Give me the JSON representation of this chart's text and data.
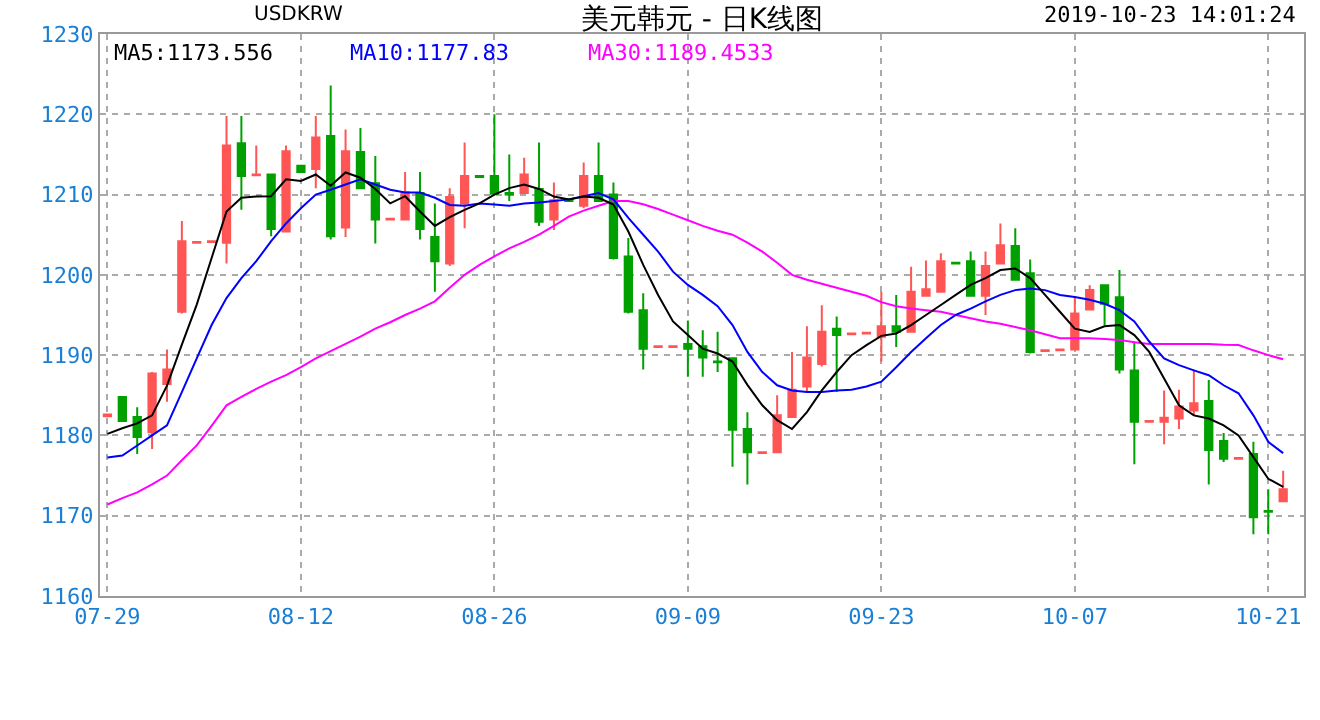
{
  "chart_data": {
    "type": "candlestick",
    "title": "美元韩元 - 日K线图",
    "annotations": [
      "USDKRW",
      "2019-10-23 14:01:24"
    ],
    "categories": [
      "07-29",
      null,
      null,
      null,
      null,
      null,
      null,
      null,
      null,
      null,
      null,
      null,
      null,
      "08-12",
      null,
      null,
      null,
      null,
      null,
      null,
      null,
      null,
      null,
      null,
      null,
      null,
      "08-26",
      null,
      null,
      null,
      null,
      null,
      null,
      null,
      null,
      null,
      null,
      null,
      null,
      "09-09",
      null,
      null,
      null,
      null,
      null,
      null,
      null,
      null,
      null,
      null,
      null,
      null,
      "09-23",
      null,
      null,
      null,
      null,
      null,
      null,
      null,
      null,
      null,
      null,
      null,
      null,
      "10-07",
      null,
      null,
      null,
      null,
      null,
      null,
      null,
      null,
      null,
      null,
      null,
      null,
      "10-21",
      null
    ],
    "ohlc": [
      [
        1182.4,
        1182.6,
        1182.4,
        1182.6
      ],
      [
        1184.8,
        1184.8,
        1181.8,
        1181.8
      ],
      [
        1182.3,
        1183.5,
        1177.7,
        1179.8
      ],
      [
        1180.4,
        1187.9,
        1178.3,
        1187.7
      ],
      [
        1186.4,
        1190.7,
        1184.2,
        1188.2
      ],
      [
        1195.4,
        1206.7,
        1195.2,
        1204.2
      ],
      [
        1204.0,
        1204.1,
        1204.0,
        1204.1
      ],
      [
        1204.1,
        1204.2,
        1204.1,
        1204.2
      ],
      [
        1204.0,
        1219.8,
        1201.4,
        1216.1
      ],
      [
        1216.4,
        1219.8,
        1208.1,
        1212.3
      ],
      [
        1212.4,
        1216.1,
        1212.4,
        1212.5
      ],
      [
        1212.5,
        1212.5,
        1204.8,
        1205.7
      ],
      [
        1205.4,
        1216.1,
        1205.3,
        1215.4
      ],
      [
        1213.6,
        1213.6,
        1212.8,
        1212.8
      ],
      [
        1213.2,
        1219.8,
        1210.8,
        1217.1
      ],
      [
        1217.3,
        1223.6,
        1204.4,
        1204.8
      ],
      [
        1205.9,
        1218.1,
        1204.7,
        1215.4
      ],
      [
        1215.3,
        1218.3,
        1210.8,
        1210.8
      ],
      [
        1211.4,
        1214.8,
        1203.9,
        1206.9
      ],
      [
        1206.9,
        1207.0,
        1206.9,
        1207.0
      ],
      [
        1206.9,
        1212.8,
        1206.9,
        1210.3
      ],
      [
        1210.2,
        1212.8,
        1204.4,
        1205.7
      ],
      [
        1204.7,
        1208.9,
        1197.9,
        1201.7
      ],
      [
        1201.4,
        1210.8,
        1201.1,
        1209.7
      ],
      [
        1208.9,
        1216.5,
        1205.8,
        1212.3
      ],
      [
        1212.3,
        1212.3,
        1212.2,
        1212.2
      ],
      [
        1212.3,
        1220.0,
        1210.1,
        1210.1
      ],
      [
        1210.2,
        1215.0,
        1209.2,
        1210.0
      ],
      [
        1210.2,
        1214.6,
        1210.2,
        1212.5
      ],
      [
        1210.7,
        1216.5,
        1206.1,
        1206.6
      ],
      [
        1206.9,
        1211.5,
        1205.6,
        1209.3
      ],
      [
        1209.4,
        1209.4,
        1209.2,
        1209.2
      ],
      [
        1208.6,
        1214.0,
        1208.3,
        1212.3
      ],
      [
        1212.3,
        1216.5,
        1209.2,
        1209.2
      ],
      [
        1210.0,
        1211.5,
        1201.9,
        1202.1
      ],
      [
        1202.3,
        1204.6,
        1195.2,
        1195.4
      ],
      [
        1195.6,
        1197.7,
        1188.2,
        1190.8
      ],
      [
        1191.0,
        1191.1,
        1191.0,
        1191.1
      ],
      [
        1191.0,
        1191.1,
        1191.0,
        1191.1
      ],
      [
        1191.4,
        1194.3,
        1187.3,
        1190.8
      ],
      [
        1191.1,
        1193.1,
        1187.3,
        1189.7
      ],
      [
        1189.2,
        1192.9,
        1187.9,
        1189.1
      ],
      [
        1189.6,
        1189.6,
        1176.1,
        1180.7
      ],
      [
        1180.8,
        1182.9,
        1173.9,
        1177.9
      ],
      [
        1177.8,
        1177.9,
        1177.8,
        1177.9
      ],
      [
        1177.9,
        1185.0,
        1177.9,
        1182.5
      ],
      [
        1182.3,
        1190.4,
        1182.3,
        1185.7
      ],
      [
        1186.1,
        1193.6,
        1185.4,
        1189.7
      ],
      [
        1188.9,
        1196.2,
        1188.6,
        1192.9
      ],
      [
        1193.3,
        1194.8,
        1185.4,
        1192.5
      ],
      [
        1192.6,
        1192.7,
        1192.6,
        1192.7
      ],
      [
        1192.7,
        1192.8,
        1192.7,
        1192.8
      ],
      [
        1192.3,
        1197.9,
        1189.2,
        1193.6
      ],
      [
        1193.6,
        1197.5,
        1191.0,
        1192.9
      ],
      [
        1192.9,
        1201.0,
        1192.9,
        1197.9
      ],
      [
        1197.4,
        1201.8,
        1197.4,
        1198.2
      ],
      [
        1197.9,
        1202.7,
        1197.9,
        1201.7
      ],
      [
        1201.5,
        1201.5,
        1201.4,
        1201.4
      ],
      [
        1201.7,
        1202.9,
        1197.4,
        1197.4
      ],
      [
        1197.4,
        1202.9,
        1195.0,
        1201.1
      ],
      [
        1201.4,
        1206.4,
        1201.4,
        1203.7
      ],
      [
        1203.6,
        1205.8,
        1199.4,
        1199.4
      ],
      [
        1200.2,
        1201.9,
        1190.2,
        1190.4
      ],
      [
        1190.5,
        1190.6,
        1190.5,
        1190.6
      ],
      [
        1190.6,
        1190.7,
        1190.6,
        1190.7
      ],
      [
        1190.7,
        1197.3,
        1190.7,
        1195.2
      ],
      [
        1195.7,
        1198.7,
        1195.7,
        1198.1
      ],
      [
        1198.7,
        1198.7,
        1193.7,
        1196.4
      ],
      [
        1197.2,
        1200.6,
        1187.7,
        1188.2
      ],
      [
        1188.1,
        1191.7,
        1176.4,
        1181.7
      ],
      [
        1181.7,
        1181.8,
        1181.7,
        1181.8
      ],
      [
        1181.7,
        1185.6,
        1178.9,
        1182.2
      ],
      [
        1182.1,
        1185.7,
        1180.8,
        1183.6
      ],
      [
        1183.1,
        1188.2,
        1182.5,
        1184.0
      ],
      [
        1184.3,
        1186.9,
        1173.9,
        1178.2
      ],
      [
        1179.3,
        1180.3,
        1176.7,
        1177.1
      ],
      [
        1177.1,
        1177.2,
        1177.1,
        1177.2
      ],
      [
        1177.7,
        1179.2,
        1167.7,
        1169.8
      ],
      [
        1170.6,
        1173.3,
        1167.7,
        1170.5
      ],
      [
        1171.8,
        1175.6,
        1171.8,
        1173.3
      ]
    ],
    "colors": [
      "#ff5555",
      "#00a000",
      "#00a000",
      "#ff5555",
      "#ff5555",
      "#ff5555",
      "#ff5555",
      "#ff5555",
      "#ff5555",
      "#00a000",
      "#ff5555",
      "#00a000",
      "#ff5555",
      "#00a000",
      "#ff5555",
      "#00a000",
      "#ff5555",
      "#00a000",
      "#00a000",
      "#ff5555",
      "#ff5555",
      "#00a000",
      "#00a000",
      "#ff5555",
      "#ff5555",
      "#00a000",
      "#00a000",
      "#00a000",
      "#ff5555",
      "#00a000",
      "#ff5555",
      "#00a000",
      "#ff5555",
      "#00a000",
      "#00a000",
      "#00a000",
      "#00a000",
      "#ff5555",
      "#ff5555",
      "#00a000",
      "#00a000",
      "#00a000",
      "#00a000",
      "#00a000",
      "#ff5555",
      "#ff5555",
      "#ff5555",
      "#ff5555",
      "#ff5555",
      "#00a000",
      "#ff5555",
      "#ff5555",
      "#ff5555",
      "#00a000",
      "#ff5555",
      "#ff5555",
      "#ff5555",
      "#00a000",
      "#00a000",
      "#ff5555",
      "#ff5555",
      "#00a000",
      "#00a000",
      "#ff5555",
      "#ff5555",
      "#ff5555",
      "#ff5555",
      "#00a000",
      "#00a000",
      "#00a000",
      "#ff5555",
      "#ff5555",
      "#ff5555",
      "#ff5555",
      "#00a000",
      "#00a000",
      "#ff5555",
      "#00a000",
      "#00a000",
      "#ff5555"
    ],
    "series": [
      {
        "type": "line",
        "name": "MA5:1173.556",
        "color": "#000000",
        "values": [
          1180.2,
          1180.9,
          1181.5,
          1182.5,
          1186.2,
          1191.3,
          1196.3,
          1202.1,
          1207.9,
          1209.6,
          1209.75,
          1209.8,
          1211.9,
          1211.7,
          1212.5,
          1211.1,
          1212.75,
          1212.1,
          1210.7,
          1208.9,
          1209.8,
          1207.9,
          1206.1,
          1207.2,
          1208.1,
          1208.9,
          1210.0,
          1210.8,
          1211.25,
          1210.7,
          1209.75,
          1209.4,
          1209.75,
          1209.6,
          1208.75,
          1205.4,
          1201.25,
          1197.5,
          1194.2,
          1192.5,
          1190.8,
          1190.2,
          1189.2,
          1186.3,
          1183.75,
          1181.9,
          1180.8,
          1182.9,
          1185.6,
          1187.9,
          1190.0,
          1191.25,
          1192.4,
          1192.7,
          1193.75,
          1195.0,
          1196.25,
          1197.5,
          1198.75,
          1199.6,
          1200.6,
          1200.8,
          1199.6,
          1197.5,
          1195.4,
          1193.3,
          1192.9,
          1193.6,
          1193.75,
          1192.5,
          1190.4,
          1187.1,
          1183.75,
          1182.5,
          1182.1,
          1181.25,
          1180.0,
          1177.3,
          1174.6,
          1173.6
        ]
      },
      {
        "type": "line",
        "name": "MA10:1177.83",
        "color": "#0000ff",
        "values": [
          1177.25,
          1177.5,
          1178.75,
          1180.0,
          1181.25,
          1185.4,
          1189.6,
          1193.75,
          1197.1,
          1199.6,
          1201.7,
          1204.2,
          1206.4,
          1208.3,
          1210.0,
          1210.6,
          1211.25,
          1211.9,
          1211.25,
          1210.6,
          1210.25,
          1210.25,
          1209.6,
          1208.7,
          1208.6,
          1208.9,
          1208.75,
          1208.6,
          1208.9,
          1209.0,
          1209.2,
          1209.4,
          1209.8,
          1210.2,
          1209.4,
          1207.1,
          1205.0,
          1202.9,
          1200.4,
          1198.75,
          1197.5,
          1196.1,
          1193.75,
          1190.4,
          1187.9,
          1186.25,
          1185.6,
          1185.4,
          1185.4,
          1185.6,
          1185.7,
          1186.1,
          1186.7,
          1188.5,
          1190.4,
          1192.1,
          1193.75,
          1195.0,
          1195.8,
          1196.7,
          1197.5,
          1198.1,
          1198.3,
          1198.1,
          1197.5,
          1197.25,
          1196.9,
          1196.4,
          1195.6,
          1194.2,
          1191.7,
          1189.6,
          1188.75,
          1188.1,
          1187.5,
          1186.25,
          1185.25,
          1182.5,
          1179.2,
          1177.8
        ]
      },
      {
        "type": "line",
        "name": "MA30:1189.4533",
        "color": "#ff00ff",
        "values": [
          1171.4,
          1172.2,
          1172.9,
          1173.9,
          1175.0,
          1176.9,
          1178.75,
          1181.2,
          1183.75,
          1184.8,
          1185.8,
          1186.7,
          1187.5,
          1188.5,
          1189.6,
          1190.5,
          1191.4,
          1192.3,
          1193.3,
          1194.1,
          1195.0,
          1195.8,
          1196.7,
          1198.4,
          1200.0,
          1201.25,
          1202.3,
          1203.3,
          1204.1,
          1205.0,
          1206.1,
          1207.25,
          1208.0,
          1208.6,
          1209.2,
          1209.2,
          1208.8,
          1208.2,
          1207.5,
          1206.8,
          1206.1,
          1205.5,
          1205.0,
          1204.0,
          1202.9,
          1201.5,
          1200.0,
          1199.4,
          1198.9,
          1198.4,
          1197.9,
          1197.4,
          1196.6,
          1196.1,
          1195.8,
          1195.6,
          1195.4,
          1195.0,
          1194.6,
          1194.2,
          1193.9,
          1193.5,
          1193.1,
          1192.6,
          1192.1,
          1192.1,
          1192.1,
          1192.0,
          1191.9,
          1191.6,
          1191.4,
          1191.4,
          1191.4,
          1191.4,
          1191.4,
          1191.3,
          1191.25,
          1190.6,
          1190.0,
          1189.5
        ]
      }
    ],
    "ylim": [
      1160,
      1230
    ],
    "yticks": [
      1160,
      1170,
      1180,
      1190,
      1200,
      1210,
      1220,
      1230
    ],
    "grid": true,
    "legend": "top left"
  }
}
